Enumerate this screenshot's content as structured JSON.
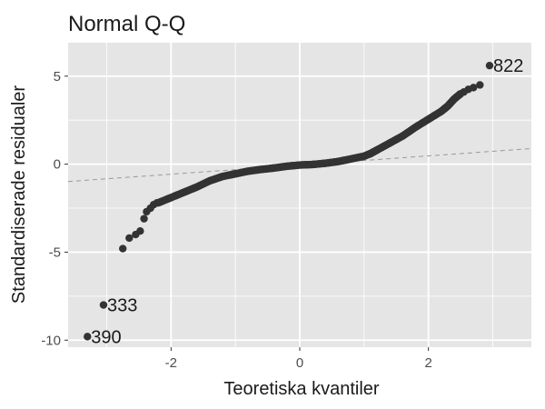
{
  "chart_data": {
    "type": "scatter",
    "title": "Normal Q-Q",
    "xlabel": "Teoretiska kvantiler",
    "ylabel": "Standardiserade residualer",
    "xlim": [
      -3.6,
      3.6
    ],
    "ylim": [
      -10.4,
      6.9
    ],
    "grid": true,
    "x_ticks": [
      -2,
      0,
      2
    ],
    "x_tick_labels": [
      "-2",
      "0",
      "2"
    ],
    "y_ticks": [
      -10,
      -5,
      0,
      5
    ],
    "y_tick_labels": [
      "-10",
      "-5",
      "0",
      "5"
    ],
    "reference_line": {
      "style": "dashed",
      "color": "#999999",
      "intercept": -0.05,
      "slope": 0.26
    },
    "colors": {
      "panel": "#e5e5e5",
      "grid": "#ffffff",
      "point": "#333333"
    },
    "points": [
      {
        "x": -3.3,
        "y": -9.8,
        "label": "390"
      },
      {
        "x": -3.05,
        "y": -8.0,
        "label": "333"
      },
      {
        "x": -2.75,
        "y": -4.8
      },
      {
        "x": -2.65,
        "y": -4.2
      },
      {
        "x": -2.55,
        "y": -4.0
      },
      {
        "x": -2.48,
        "y": -3.8
      },
      {
        "x": -2.42,
        "y": -3.1
      },
      {
        "x": -2.38,
        "y": -2.7
      },
      {
        "x": -2.32,
        "y": -2.5
      },
      {
        "x": -2.27,
        "y": -2.3
      },
      {
        "x": -2.22,
        "y": -2.2
      },
      {
        "x": 2.55,
        "y": 4.1
      },
      {
        "x": 2.62,
        "y": 4.25
      },
      {
        "x": 2.7,
        "y": 4.35
      },
      {
        "x": 2.8,
        "y": 4.5
      },
      {
        "x": 2.95,
        "y": 5.6,
        "label": "822"
      }
    ],
    "dense_curve": [
      [
        -2.2,
        -2.2
      ],
      [
        -2.0,
        -1.9
      ],
      [
        -1.8,
        -1.6
      ],
      [
        -1.6,
        -1.3
      ],
      [
        -1.4,
        -0.95
      ],
      [
        -1.2,
        -0.7
      ],
      [
        -1.0,
        -0.55
      ],
      [
        -0.8,
        -0.4
      ],
      [
        -0.6,
        -0.3
      ],
      [
        -0.4,
        -0.22
      ],
      [
        -0.2,
        -0.12
      ],
      [
        0.0,
        -0.05
      ],
      [
        0.2,
        -0.02
      ],
      [
        0.4,
        0.05
      ],
      [
        0.6,
        0.15
      ],
      [
        0.8,
        0.3
      ],
      [
        1.0,
        0.45
      ],
      [
        1.1,
        0.6
      ],
      [
        1.2,
        0.8
      ],
      [
        1.4,
        1.2
      ],
      [
        1.6,
        1.6
      ],
      [
        1.8,
        2.1
      ],
      [
        2.0,
        2.55
      ],
      [
        2.2,
        3.0
      ],
      [
        2.3,
        3.3
      ],
      [
        2.4,
        3.7
      ],
      [
        2.5,
        4.0
      ]
    ]
  }
}
